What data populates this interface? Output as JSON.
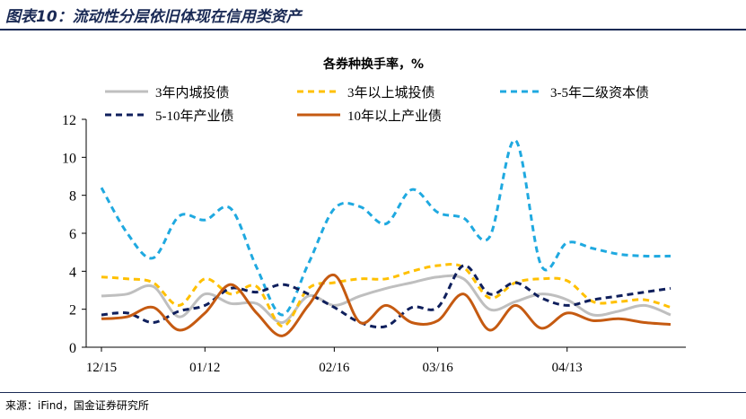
{
  "figure_title": "图表10：流动性分层依旧体现在信用类资产",
  "source": "来源：iFind，国金证券研究所",
  "chart_data": {
    "type": "line",
    "title": "各券种换手率，%",
    "xlabel": "",
    "ylabel": "",
    "ylim": [
      0,
      12
    ],
    "yticks": [
      0,
      2,
      4,
      6,
      8,
      10,
      12
    ],
    "x_tick_labels": [
      "12/15",
      "01/12",
      "02/16",
      "03/16",
      "04/13"
    ],
    "x_tick_positions": [
      0,
      4,
      9,
      13,
      18
    ],
    "x_count": 23,
    "grid": false,
    "legend": "top",
    "series": [
      {
        "name": "3年内城投债",
        "color": "#bfbfbf",
        "dash": "solid",
        "values": [
          2.7,
          2.8,
          3.2,
          1.6,
          2.8,
          2.3,
          2.3,
          1.3,
          2.7,
          2.2,
          2.7,
          3.1,
          3.4,
          3.7,
          3.6,
          2.0,
          2.4,
          2.8,
          2.5,
          1.7,
          1.9,
          2.2,
          1.7
        ]
      },
      {
        "name": "3年以上城投债",
        "color": "#ffc000",
        "dash": "dashed",
        "values": [
          3.7,
          3.6,
          3.4,
          2.2,
          3.6,
          2.8,
          3.2,
          1.1,
          3.1,
          3.4,
          3.6,
          3.6,
          4.0,
          4.3,
          4.2,
          2.6,
          3.4,
          3.6,
          3.5,
          2.4,
          2.4,
          2.5,
          2.1
        ]
      },
      {
        "name": "3-5年二级资本债",
        "color": "#1fa9e0",
        "dash": "dashed",
        "values": [
          8.4,
          6.0,
          4.7,
          6.9,
          6.7,
          7.3,
          4.2,
          1.7,
          4.4,
          7.3,
          7.4,
          6.5,
          8.3,
          7.1,
          6.8,
          5.8,
          10.9,
          4.3,
          5.5,
          5.2,
          4.9,
          4.8,
          4.8
        ]
      },
      {
        "name": "5-10年产业债",
        "color": "#0f1f5c",
        "dash": "dashed",
        "values": [
          1.7,
          1.8,
          1.3,
          1.9,
          2.2,
          3.1,
          2.9,
          3.3,
          2.8,
          2.1,
          1.3,
          1.1,
          2.1,
          2.1,
          4.3,
          2.8,
          3.4,
          2.6,
          2.2,
          2.5,
          2.7,
          2.9,
          3.1
        ]
      },
      {
        "name": "10年以上产业债",
        "color": "#c55a11",
        "dash": "solid",
        "values": [
          1.5,
          1.6,
          2.1,
          0.9,
          1.8,
          3.3,
          1.8,
          0.6,
          2.2,
          3.8,
          1.3,
          2.2,
          1.3,
          1.4,
          2.8,
          0.9,
          2.2,
          1.0,
          1.8,
          1.4,
          1.5,
          1.3,
          1.2
        ]
      }
    ]
  }
}
